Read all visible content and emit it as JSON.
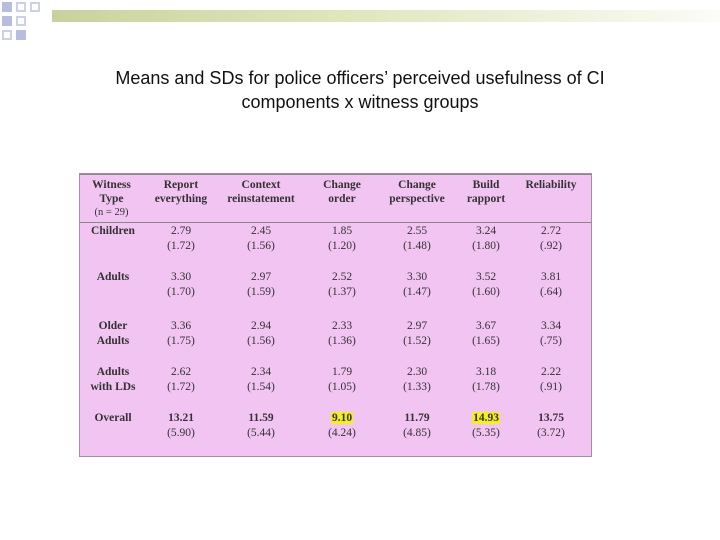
{
  "title": {
    "line1": "Means and SDs for police officers’ perceived usefulness of CI",
    "line2": "components x witness groups"
  },
  "table": {
    "corner": {
      "line1": "Witness",
      "line2": "Type",
      "line3": "(n = 29)"
    },
    "columns": [
      {
        "line1": "Report",
        "line2": "everything"
      },
      {
        "line1": "Context",
        "line2": "reinstatement"
      },
      {
        "line1": "Change",
        "line2": "order"
      },
      {
        "line1": "Change",
        "line2": "perspective"
      },
      {
        "line1": "Build",
        "line2": "rapport"
      },
      {
        "line1": "Reliability",
        "line2": ""
      }
    ],
    "rows": [
      {
        "label1": "Children",
        "label2": "",
        "cells": [
          [
            "2.79",
            "(1.72)"
          ],
          [
            "2.45",
            "(1.56)"
          ],
          [
            "1.85",
            "(1.20)"
          ],
          [
            "2.55",
            "(1.48)"
          ],
          [
            "3.24",
            "(1.80)"
          ],
          [
            "2.72",
            "(.92)"
          ]
        ]
      },
      {
        "label1": "Adults",
        "label2": "",
        "cells": [
          [
            "3.30",
            "(1.70)"
          ],
          [
            "2.97",
            "(1.59)"
          ],
          [
            "2.52",
            "(1.37)"
          ],
          [
            "3.30",
            "(1.47)"
          ],
          [
            "3.52",
            "(1.60)"
          ],
          [
            "3.81",
            "(.64)"
          ]
        ]
      },
      {
        "label1": "Older",
        "label2": "Adults",
        "cells": [
          [
            "3.36",
            "(1.75)"
          ],
          [
            "2.94",
            "(1.56)"
          ],
          [
            "2.33",
            "(1.36)"
          ],
          [
            "2.97",
            "(1.52)"
          ],
          [
            "3.67",
            "(1.65)"
          ],
          [
            "3.34",
            "(.75)"
          ]
        ]
      },
      {
        "label1": "Adults",
        "label2": "with LDs",
        "cells": [
          [
            "2.62",
            "(1.72)"
          ],
          [
            "2.34",
            "(1.54)"
          ],
          [
            "1.79",
            "(1.05)"
          ],
          [
            "2.30",
            "(1.33)"
          ],
          [
            "3.18",
            "(1.78)"
          ],
          [
            "2.22",
            "(.91)"
          ]
        ]
      },
      {
        "label1": "Overall",
        "label2": "",
        "cells": [
          [
            "13.21",
            "(5.90)"
          ],
          [
            "11.59",
            "(5.44)"
          ],
          [
            "9.10",
            "(4.24)"
          ],
          [
            "11.79",
            "(4.85)"
          ],
          [
            "14.93",
            "(5.35)"
          ],
          [
            "13.75",
            "(3.72)"
          ]
        ]
      }
    ],
    "highlighted": [
      "9.10",
      "14.93"
    ],
    "colors": {
      "background": "#f2c4f2",
      "highlight": "#f4f01a"
    }
  }
}
